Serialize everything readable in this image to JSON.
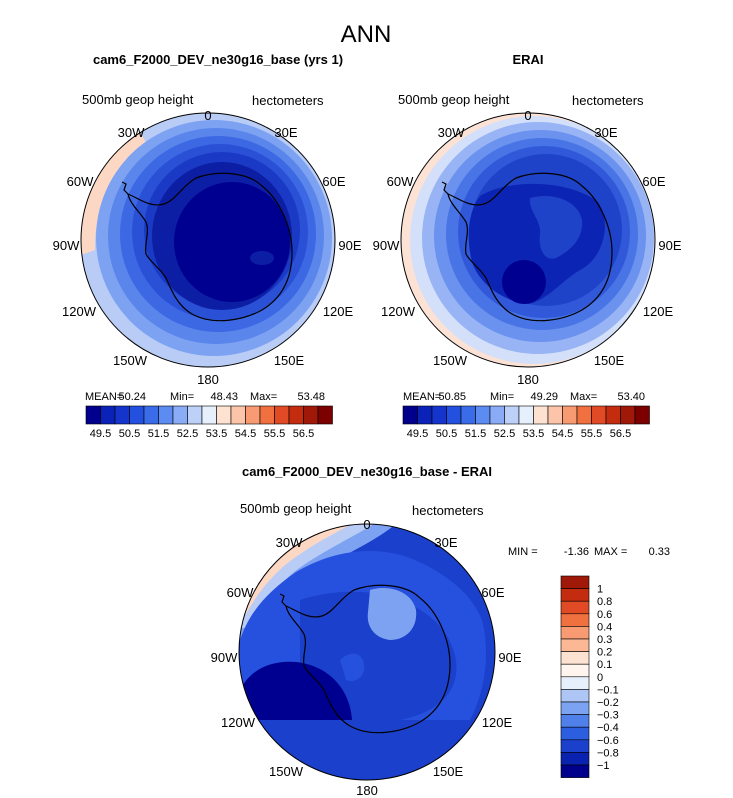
{
  "figure": {
    "title": "ANN"
  },
  "chart_data": [
    {
      "type": "heatmap",
      "title": "cam6_F2000_DEV_ne30g16_base (yrs 1)",
      "left_label": "500mb geop height",
      "right_label": "hectometers",
      "projection": "south polar stereographic",
      "longitude_labels": [
        "0",
        "30E",
        "60E",
        "90E",
        "120E",
        "150E",
        "180",
        "150W",
        "120W",
        "90W",
        "60W",
        "30W"
      ],
      "stats": {
        "mean_label": "MEAN=",
        "mean": "50.24",
        "min_label": "Min=",
        "min": "48.43",
        "max_label": "Max=",
        "max": "53.48"
      },
      "colorbar": {
        "levels": [
          "49.5",
          "50.5",
          "51.5",
          "52.5",
          "53.5",
          "54.5",
          "55.5",
          "56.5"
        ],
        "colors": [
          "#00008c",
          "#0a22b8",
          "#1434cc",
          "#2450e0",
          "#3a6cea",
          "#5c8cf2",
          "#8aacf6",
          "#bcd0f8",
          "#e6f0fc",
          "#fde2d2",
          "#fcc4a8",
          "#f89a72",
          "#f07040",
          "#e04a24",
          "#c42c10",
          "#a01808",
          "#7c0000"
        ]
      }
    },
    {
      "type": "heatmap",
      "title": "ERAI",
      "left_label": "500mb geop height",
      "right_label": "hectometers",
      "projection": "south polar stereographic",
      "longitude_labels": [
        "0",
        "30E",
        "60E",
        "90E",
        "120E",
        "150E",
        "180",
        "150W",
        "120W",
        "90W",
        "60W",
        "30W"
      ],
      "stats": {
        "mean_label": "MEAN=",
        "mean": "50.85",
        "min_label": "Min=",
        "min": "49.29",
        "max_label": "Max=",
        "max": "53.40"
      },
      "colorbar": {
        "levels": [
          "49.5",
          "50.5",
          "51.5",
          "52.5",
          "53.5",
          "54.5",
          "55.5",
          "56.5"
        ],
        "colors": [
          "#00008c",
          "#0a22b8",
          "#1434cc",
          "#2450e0",
          "#3a6cea",
          "#5c8cf2",
          "#8aacf6",
          "#bcd0f8",
          "#e6f0fc",
          "#fde2d2",
          "#fcc4a8",
          "#f89a72",
          "#f07040",
          "#e04a24",
          "#c42c10",
          "#a01808",
          "#7c0000"
        ]
      }
    },
    {
      "type": "heatmap",
      "title": "cam6_F2000_DEV_ne30g16_base - ERAI",
      "left_label": "500mb geop height",
      "right_label": "hectometers",
      "projection": "south polar stereographic",
      "longitude_labels": [
        "0",
        "30E",
        "60E",
        "90E",
        "120E",
        "150E",
        "180",
        "150W",
        "120W",
        "90W",
        "60W",
        "30W"
      ],
      "stats": {
        "min_label": "MIN =",
        "min": "-1.36",
        "max_label": "MAX =",
        "max": "0.33"
      },
      "colorbar": {
        "orientation": "vertical",
        "levels": [
          "1",
          "0.8",
          "0.6",
          "0.4",
          "0.3",
          "0.2",
          "0.1",
          "0",
          "−0.1",
          "−0.2",
          "−0.3",
          "−0.4",
          "−0.6",
          "−0.8",
          "−1"
        ],
        "colors": [
          "#a01808",
          "#c42c10",
          "#e04a24",
          "#f07040",
          "#f89a72",
          "#fcb894",
          "#fde2d2",
          "#fff4ee",
          "#e6f0fc",
          "#aec6f6",
          "#7ca2f2",
          "#5080ea",
          "#2c5ee0",
          "#1a40cc",
          "#0a22b0",
          "#00008c"
        ]
      }
    }
  ],
  "colors": {
    "continent_outline": "#000000",
    "map_border": "#000000"
  }
}
